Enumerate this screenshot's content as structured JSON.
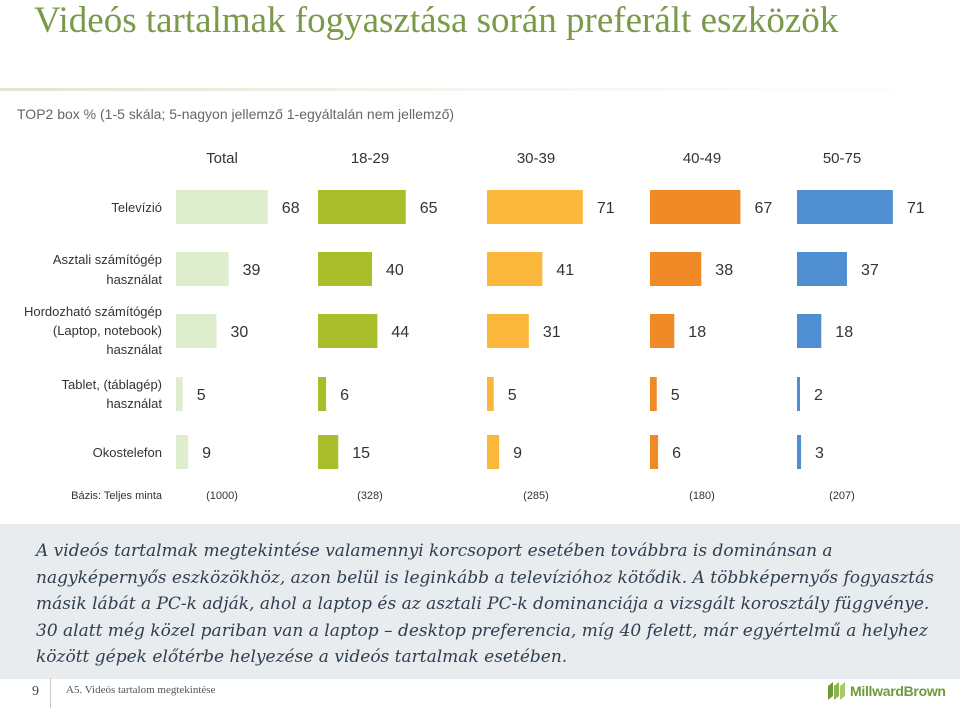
{
  "title": "Videós tartalmak fogyasztása során preferált eszközök",
  "subtitle": "TOP2 box % (1-5 skála; 5-nagyon jellemző 1-egyáltalán nem jellemző)",
  "chart_data": {
    "type": "bar",
    "orientation": "horizontal-small-multiples",
    "groups": [
      "Total",
      "18-29",
      "30-39",
      "40-49",
      "50-75"
    ],
    "categories": [
      "Televízió",
      "Asztali számítógép használat",
      "Hordozható számítógép (Laptop, notebook) használat",
      "Tablet, (táblagép) használat",
      "Okostelefon"
    ],
    "series": [
      {
        "name": "Total",
        "color": "#dfedcf",
        "values": [
          68,
          39,
          30,
          5,
          9
        ]
      },
      {
        "name": "18-29",
        "color": "#a9be2a",
        "values": [
          65,
          40,
          44,
          6,
          15
        ]
      },
      {
        "name": "30-39",
        "color": "#fbb73c",
        "values": [
          71,
          41,
          31,
          5,
          9
        ]
      },
      {
        "name": "40-49",
        "color": "#f08a26",
        "values": [
          67,
          38,
          18,
          5,
          6
        ]
      },
      {
        "name": "50-75",
        "color": "#4f8ed0",
        "values": [
          71,
          37,
          18,
          2,
          3
        ]
      }
    ],
    "base_label": "Bázis: Teljes minta",
    "bases": [
      "(1000)",
      "(328)",
      "(285)",
      "(180)",
      "(207)"
    ],
    "xlim": [
      0,
      100
    ]
  },
  "note": "A videós tartalmak megtekintése valamennyi korcsoport esetében továbbra is dominánsan a nagyképernyős eszközökhöz, azon belül is leginkább a televízióhoz kötődik. A többképernyős fogyasztás másik lábát a PC-k adják, ahol a laptop és az asztali PC-k dominanciája a vizsgált korosztály függvénye. 30 alatt még közel pariban van a laptop – desktop preferencia, míg 40 felett, már egyértelmű a helyhez között gépek előtérbe helyezése a videós tartalmak esetében.",
  "footer": {
    "page_number": "9",
    "section": "A5. Videós tartalom megtekintése",
    "brand": "MillwardBrown"
  }
}
